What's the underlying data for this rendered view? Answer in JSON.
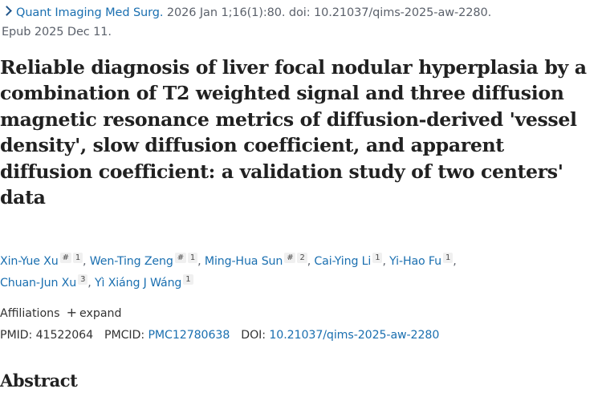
{
  "citation": {
    "journal": "Quant Imaging Med Surg.",
    "details": " 2026 Jan 1;16(1):80. doi: 10.21037/qims-2025-aw-2280.",
    "epub": "Epub 2025 Dec 11."
  },
  "title": "Reliable diagnosis of liver focal nodular hyperplasia by a combination of T2 weighted signal and three diffusion magnetic resonance metrics of diffusion-derived 'vessel density', slow diffusion coefficient, and apparent diffusion coefficient: a validation study of two centers' data",
  "authors": [
    {
      "name": "Xin-Yue Xu",
      "equal": "#",
      "aff": "1"
    },
    {
      "name": "Wen-Ting Zeng",
      "equal": "#",
      "aff": "1"
    },
    {
      "name": "Ming-Hua Sun",
      "equal": "#",
      "aff": "2"
    },
    {
      "name": "Cai-Ying Li",
      "equal": "",
      "aff": "1"
    },
    {
      "name": "Yi-Hao Fu",
      "equal": "",
      "aff": "1"
    },
    {
      "name": "Chuan-Jun Xu",
      "equal": "",
      "aff": "3"
    },
    {
      "name": "Yì Xiáng J Wáng",
      "equal": "",
      "aff": "1"
    }
  ],
  "affiliations": {
    "label": "Affiliations",
    "expand_symbol": "+",
    "expand_label": "expand"
  },
  "identifiers": {
    "pmid_label": "PMID:",
    "pmid": "41522064",
    "pmcid_label": "PMCID:",
    "pmcid": "PMC12780638",
    "doi_label": "DOI:",
    "doi": "10.21037/qims-2025-aw-2280"
  },
  "abstract_heading": "Abstract",
  "colors": {
    "link": "#1a6fb0",
    "text": "#212121",
    "muted": "#5b616b"
  }
}
